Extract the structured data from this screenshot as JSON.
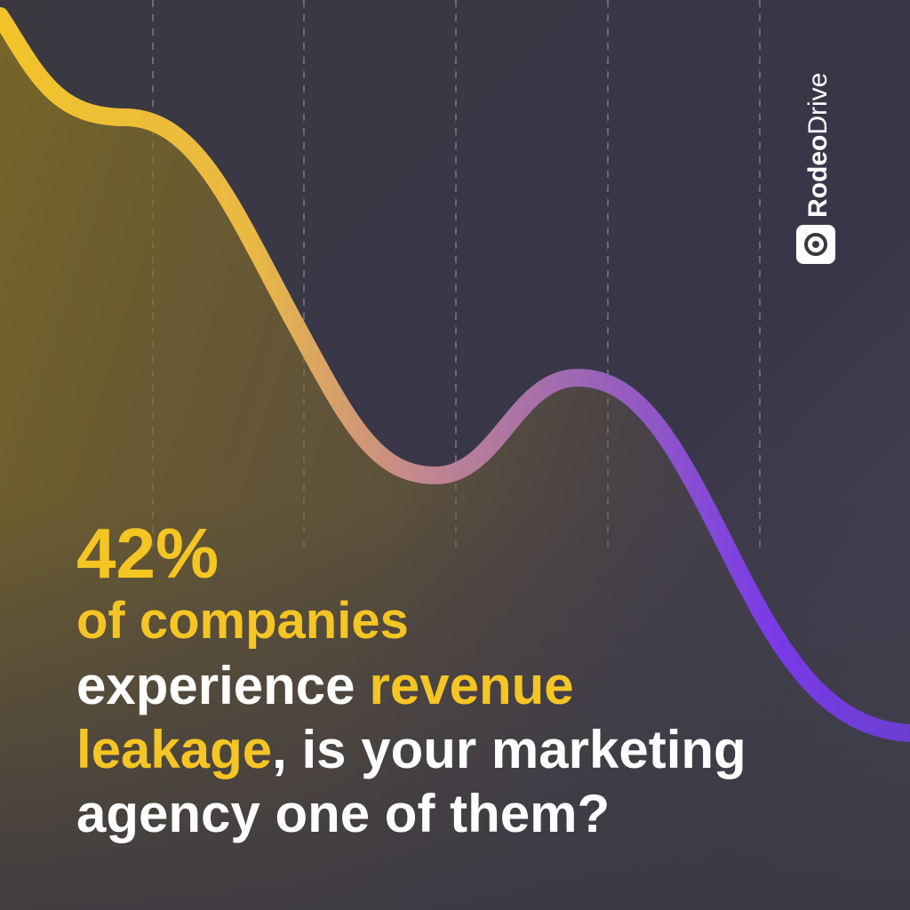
{
  "brand": {
    "name_bold": "Rodeo",
    "name_light": "Drive"
  },
  "headline": {
    "stat": "42%",
    "line1": "of companies",
    "line2_a": "experience",
    "line2_b": "revenue",
    "line3_a": "leakage",
    "line3_b": ", is your marketing",
    "line4": "agency one of them?"
  }
}
